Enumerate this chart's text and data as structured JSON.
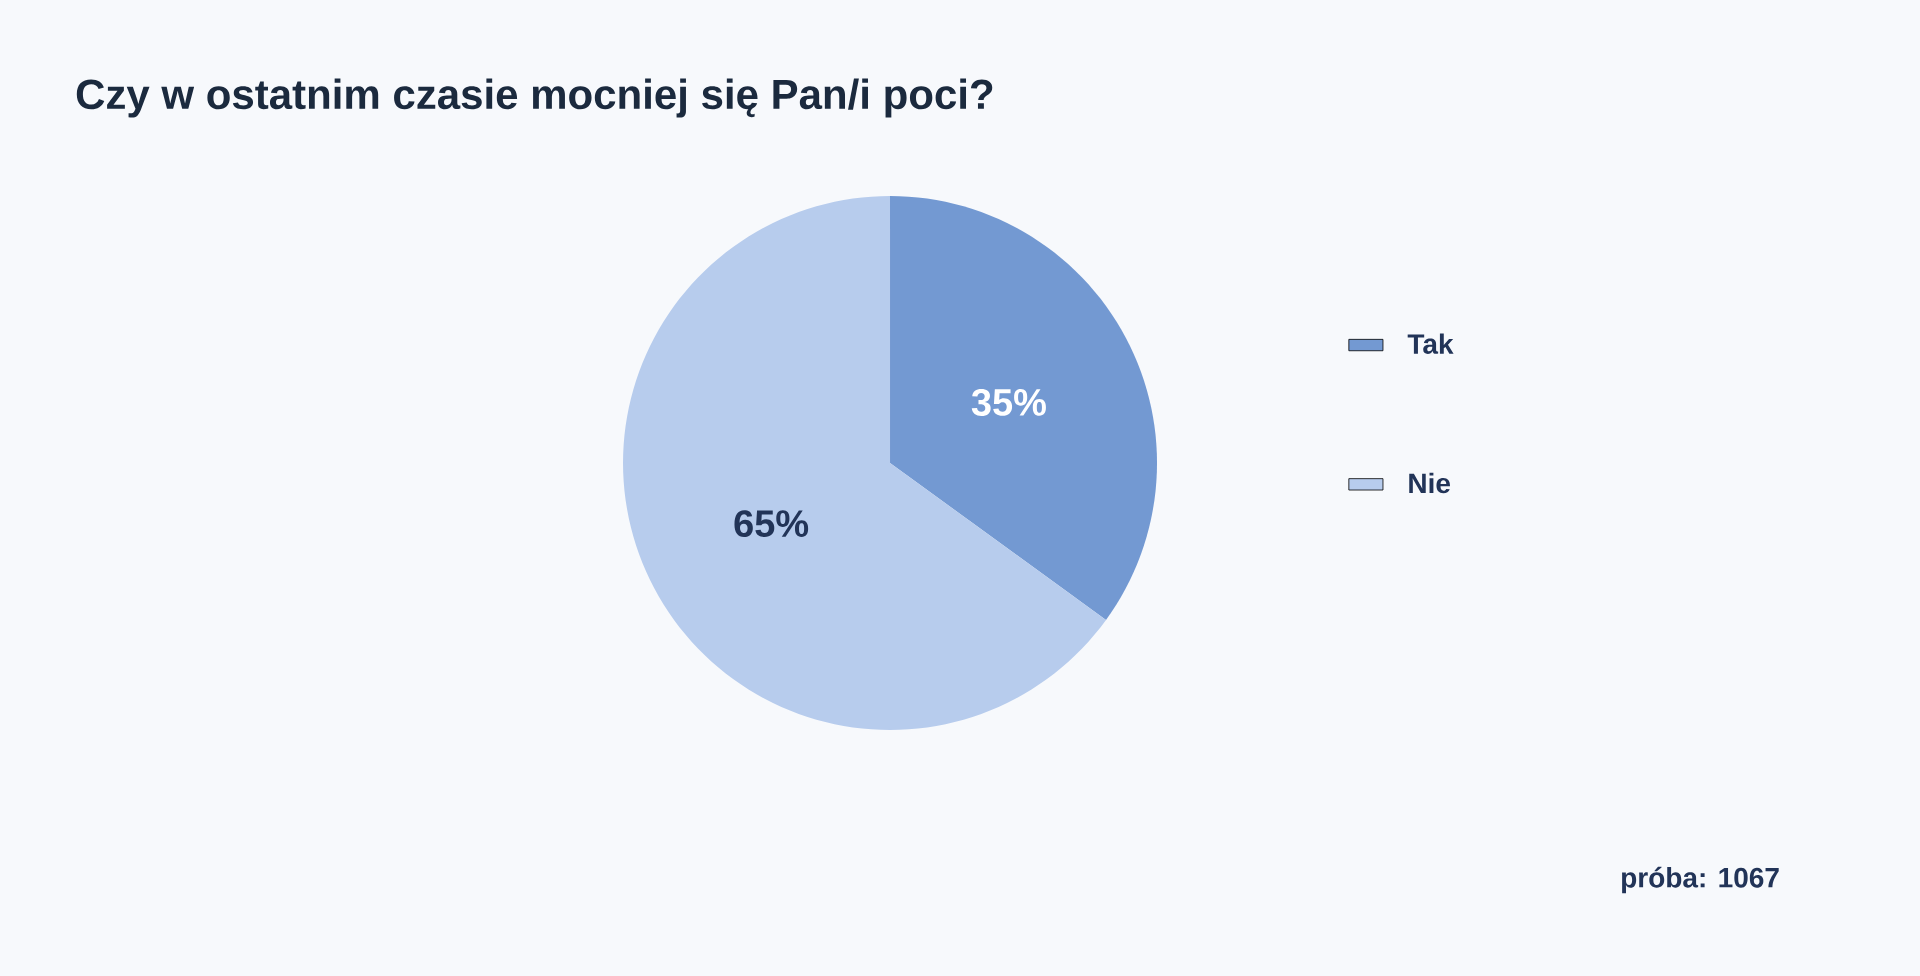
{
  "chart_data": {
    "type": "pie",
    "title": "Czy w ostatnim czasie mocniej się Pan/i poci?",
    "categories": [
      "Tak",
      "Nie"
    ],
    "values": [
      35,
      65
    ],
    "value_labels": [
      "35%",
      "65%"
    ],
    "colors": [
      "#7399d2",
      "#b7cced"
    ],
    "legend": "right",
    "annotations": [
      "próba: 1067"
    ]
  }
}
